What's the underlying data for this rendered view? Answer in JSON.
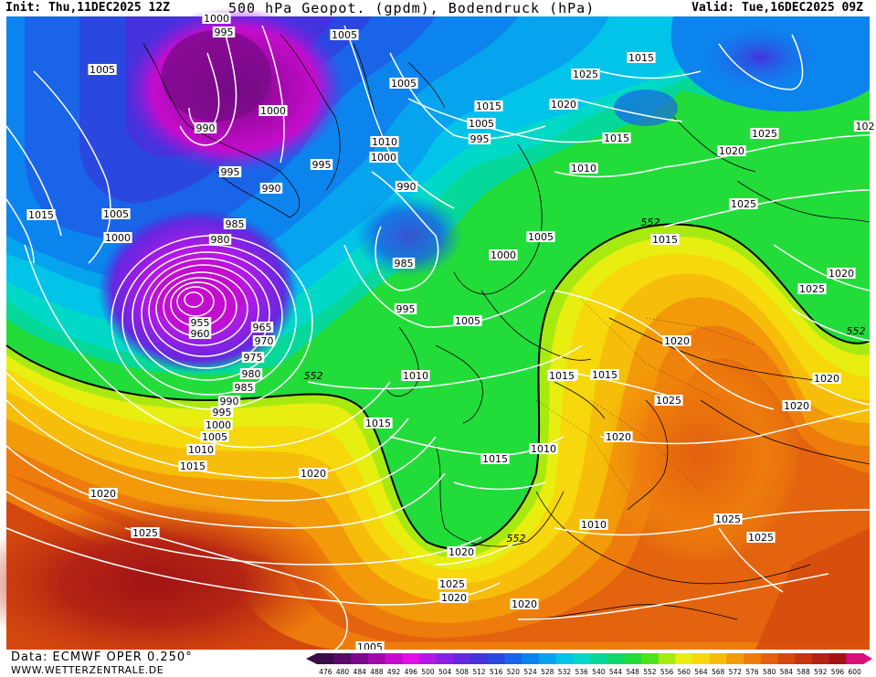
{
  "header": {
    "init": "Init: Thu,11DEC2025 12Z",
    "title": "500 hPa Geopot. (gpdm), Bodendruck (hPa)",
    "valid": "Valid: Tue,16DEC2025 09Z"
  },
  "footer": {
    "data_source": "Data: ECMWF OPER 0.250°",
    "website": "WWW.WETTERZENTRALE.DE"
  },
  "legend": {
    "ticks": [
      "476",
      "480",
      "484",
      "488",
      "492",
      "496",
      "500",
      "504",
      "508",
      "512",
      "516",
      "520",
      "524",
      "528",
      "532",
      "536",
      "540",
      "544",
      "548",
      "552",
      "556",
      "560",
      "564",
      "568",
      "572",
      "576",
      "580",
      "584",
      "588",
      "592",
      "596",
      "600"
    ],
    "colors": [
      "#3a0d4a",
      "#5a0a6a",
      "#7a0a8a",
      "#a10aa8",
      "#c40ccc",
      "#e010e6",
      "#b418e6",
      "#8a20e6",
      "#6428e0",
      "#4432dc",
      "#2a48e0",
      "#1a64e8",
      "#0c84ee",
      "#06a4ee",
      "#02c4e8",
      "#02d8c8",
      "#06d89a",
      "#10d86a",
      "#22dc3a",
      "#50e21a",
      "#a8ea10",
      "#e8ee10",
      "#f6d80c",
      "#f6be0a",
      "#f29a0a",
      "#ee7c0c",
      "#e2600e",
      "#d4480e",
      "#c63410",
      "#b42414",
      "#a01414",
      "#d8107a"
    ]
  },
  "map_labels": {
    "isobars": [
      {
        "t": "1000"
      },
      {
        "t": "995"
      },
      {
        "t": "1005"
      },
      {
        "t": "1005"
      },
      {
        "t": "990"
      },
      {
        "t": "1000"
      },
      {
        "t": "995"
      },
      {
        "t": "995"
      },
      {
        "t": "990"
      },
      {
        "t": "1015"
      },
      {
        "t": "1005"
      },
      {
        "t": "1000"
      },
      {
        "t": "985"
      },
      {
        "t": "980"
      },
      {
        "t": "955"
      },
      {
        "t": "960"
      },
      {
        "t": "965"
      },
      {
        "t": "970"
      },
      {
        "t": "975"
      },
      {
        "t": "980"
      },
      {
        "t": "985"
      },
      {
        "t": "990"
      },
      {
        "t": "995"
      },
      {
        "t": "1000"
      },
      {
        "t": "1005"
      },
      {
        "t": "1010"
      },
      {
        "t": "1015"
      },
      {
        "t": "1020"
      },
      {
        "t": "1025"
      },
      {
        "t": "1020"
      },
      {
        "t": "1015"
      },
      {
        "t": "1010"
      },
      {
        "t": "1005"
      },
      {
        "t": "1010"
      },
      {
        "t": "1005"
      },
      {
        "t": "1000"
      },
      {
        "t": "995"
      },
      {
        "t": "990"
      },
      {
        "t": "985"
      },
      {
        "t": "995"
      },
      {
        "t": "1000"
      },
      {
        "t": "1005"
      },
      {
        "t": "1010"
      },
      {
        "t": "1015"
      },
      {
        "t": "1020"
      },
      {
        "t": "1025"
      },
      {
        "t": "1015"
      },
      {
        "t": "1015"
      },
      {
        "t": "1020"
      },
      {
        "t": "1025"
      },
      {
        "t": "1015"
      },
      {
        "t": "1010"
      },
      {
        "t": "1005"
      },
      {
        "t": "1010"
      },
      {
        "t": "1015"
      },
      {
        "t": "1020"
      },
      {
        "t": "1025"
      },
      {
        "t": "1025"
      },
      {
        "t": "1020"
      },
      {
        "t": "1025"
      },
      {
        "t": "1020"
      },
      {
        "t": "1020"
      },
      {
        "t": "1015"
      },
      {
        "t": "1010"
      },
      {
        "t": "1020"
      },
      {
        "t": "1020"
      },
      {
        "t": "1025"
      },
      {
        "t": "1025"
      },
      {
        "t": "1020"
      },
      {
        "t": "1025"
      },
      {
        "t": "1015"
      },
      {
        "t": "1020"
      },
      {
        "t": "102"
      },
      {
        "t": "1005"
      }
    ],
    "geopot_552": [
      "552",
      "552",
      "552",
      "552"
    ]
  }
}
